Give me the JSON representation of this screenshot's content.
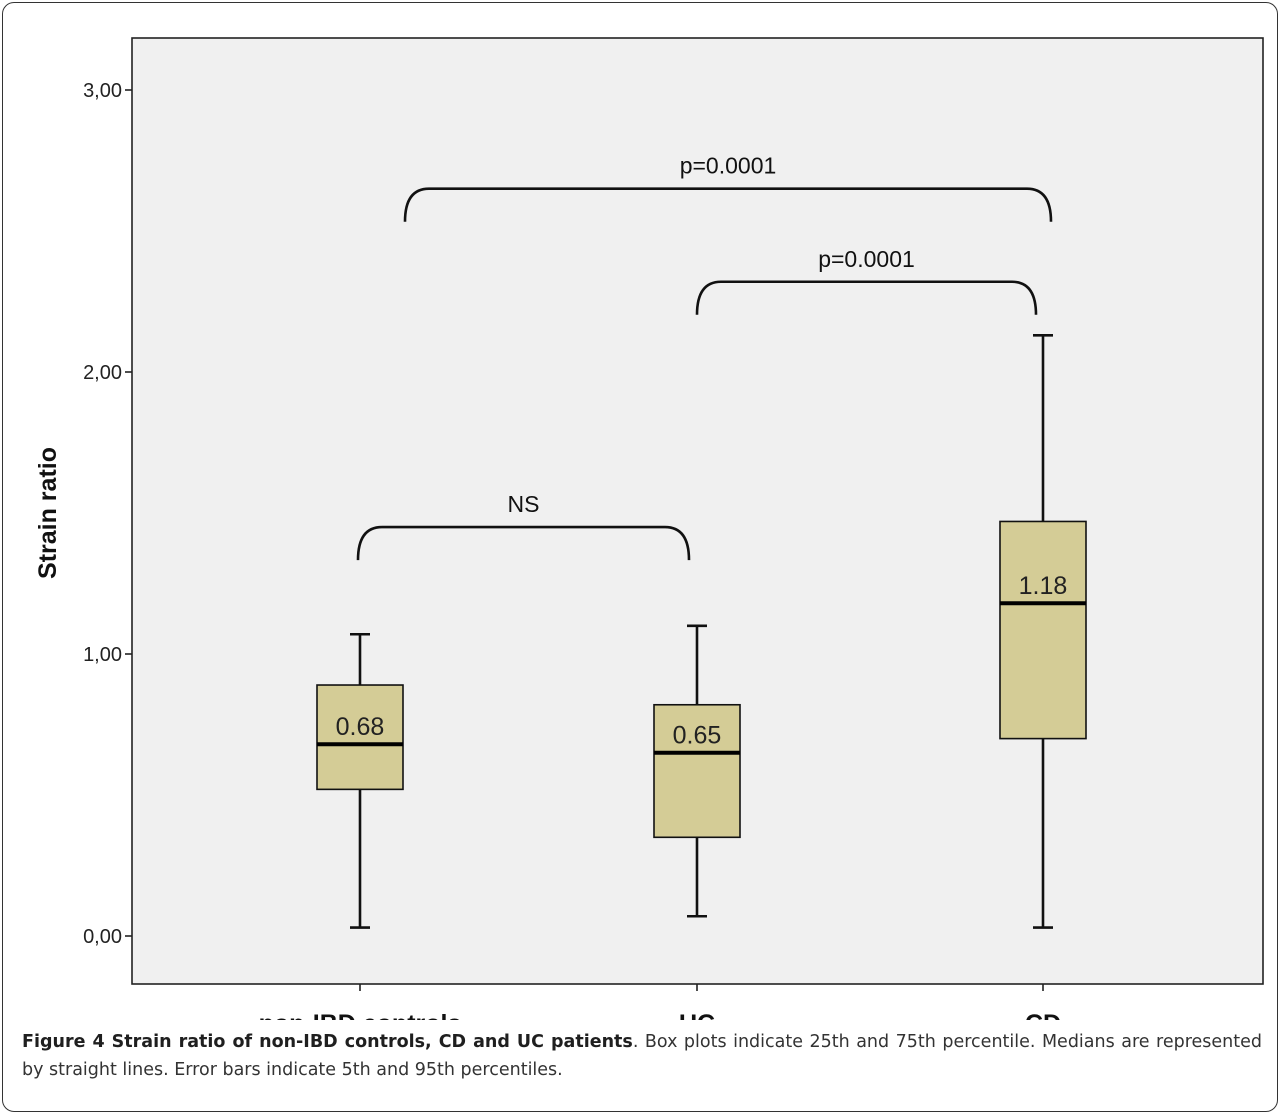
{
  "chart_data": {
    "type": "box",
    "categories": [
      "non-IBD controls",
      "UC",
      "CD"
    ],
    "ylabel": "Strain ratio",
    "xlabel": "",
    "ylim": [
      -0.17,
      3.2
    ],
    "yticks": [
      {
        "value": 0,
        "label": "0,00"
      },
      {
        "value": 1,
        "label": "1,00"
      },
      {
        "value": 2,
        "label": "2,00"
      },
      {
        "value": 3,
        "label": "3,00"
      }
    ],
    "boxes": [
      {
        "category": "non-IBD controls",
        "whisker_low": 0.03,
        "q1": 0.52,
        "median": 0.68,
        "q3": 0.89,
        "whisker_high": 1.07,
        "median_label": "0.68"
      },
      {
        "category": "UC",
        "whisker_low": 0.07,
        "q1": 0.35,
        "median": 0.65,
        "q3": 0.82,
        "whisker_high": 1.1,
        "median_label": "0.65"
      },
      {
        "category": "CD",
        "whisker_low": 0.03,
        "q1": 0.7,
        "median": 1.18,
        "q3": 1.47,
        "whisker_high": 2.13,
        "median_label": "1.18"
      }
    ],
    "comparisons": [
      {
        "from": "non-IBD controls",
        "to": "CD",
        "label": "p=0.0001",
        "level": 2.65
      },
      {
        "from": "UC",
        "to": "CD",
        "label": "p=0.0001",
        "level": 2.32
      },
      {
        "from": "non-IBD controls",
        "to": "UC",
        "label": "NS",
        "level": 1.45
      }
    ],
    "box_fill": "#d4cc96",
    "plot_background": "#f0f0f0"
  },
  "caption": {
    "bold": "Figure 4 Strain ratio of non-IBD controls, CD and UC patients",
    "text": ". Box plots indicate 25th and 75th percentile. Medians are represented by straight lines. Error bars indicate 5th and 95th percentiles."
  }
}
